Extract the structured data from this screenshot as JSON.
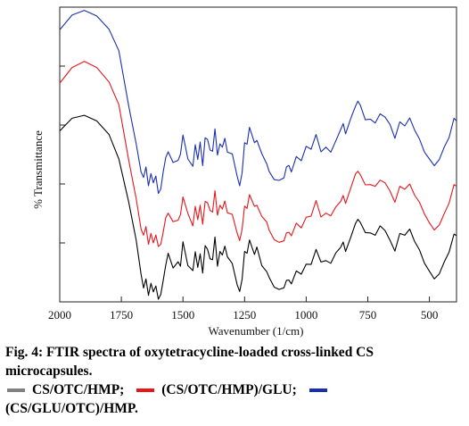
{
  "chart_data": {
    "type": "line",
    "xlabel": "Wavenumber (1/cm)",
    "ylabel": "% Transmittance",
    "xlim": [
      2000,
      390
    ],
    "ylim": [
      0,
      100
    ],
    "x_ticks": [
      2000,
      1750,
      1500,
      1250,
      1000,
      750,
      500
    ],
    "x_tick_labels": [
      "2000",
      "1750",
      "1500",
      "1250",
      "1000",
      "750",
      "500"
    ],
    "y_ticks": [
      20,
      40,
      60,
      80,
      100
    ],
    "series": [
      {
        "name": "CS/OTC/HMP",
        "color": "#000000",
        "x": [
          2000,
          1950,
          1900,
          1850,
          1800,
          1760,
          1720,
          1690,
          1670,
          1660,
          1650,
          1640,
          1630,
          1620,
          1610,
          1600,
          1590,
          1580,
          1570,
          1560,
          1540,
          1520,
          1510,
          1500,
          1490,
          1480,
          1460,
          1450,
          1440,
          1430,
          1420,
          1410,
          1400,
          1390,
          1380,
          1370,
          1360,
          1350,
          1340,
          1330,
          1320,
          1300,
          1280,
          1270,
          1260,
          1250,
          1240,
          1230,
          1210,
          1200,
          1180,
          1160,
          1150,
          1130,
          1110,
          1090,
          1080,
          1070,
          1060,
          1040,
          1020,
          1000,
          980,
          960,
          940,
          920,
          900,
          880,
          860,
          850,
          840,
          820,
          800,
          790,
          780,
          760,
          740,
          720,
          700,
          680,
          660,
          640,
          620,
          600,
          580,
          560,
          540,
          520,
          500,
          480,
          460,
          440,
          420,
          400,
          390
        ],
        "y": [
          58.0,
          62.3,
          63.3,
          61.4,
          56.8,
          48.5,
          33.8,
          21.0,
          9.4,
          4.7,
          7.8,
          2.2,
          6.3,
          3.4,
          5.4,
          0.9,
          2.5,
          7.4,
          12.5,
          16.5,
          11.5,
          13.6,
          12.1,
          20.4,
          16.3,
          12.3,
          10.6,
          17.0,
          11.7,
          16.3,
          9.8,
          19.1,
          17.8,
          14.6,
          14.3,
          22.0,
          12.1,
          17.1,
          15.9,
          18.9,
          15.3,
          13.0,
          5.8,
          3.5,
          7.6,
          17.1,
          16.5,
          21.0,
          16.1,
          18.6,
          12.3,
          10.2,
          8.3,
          5.0,
          4.2,
          4.8,
          7.3,
          7.4,
          6.1,
          10.5,
          9.4,
          12.8,
          12.7,
          17.8,
          13.5,
          14.0,
          13.1,
          16.6,
          18.5,
          20.3,
          17.1,
          21.7,
          26.6,
          28.0,
          26.9,
          23.5,
          23.4,
          22.6,
          25.8,
          24.2,
          20.9,
          17.2,
          23.2,
          22.6,
          24.7,
          20.5,
          17.6,
          13.1,
          10.4,
          7.8,
          9.5,
          13.5,
          16.9,
          23.0,
          22.5
        ]
      },
      {
        "name": "(CS/OTC/HMP)/GLU",
        "color": "#e8151b",
        "x": [
          2000,
          1950,
          1900,
          1850,
          1800,
          1760,
          1720,
          1690,
          1670,
          1660,
          1650,
          1640,
          1630,
          1620,
          1610,
          1600,
          1590,
          1580,
          1570,
          1560,
          1540,
          1520,
          1510,
          1500,
          1490,
          1480,
          1460,
          1450,
          1440,
          1430,
          1420,
          1410,
          1400,
          1390,
          1380,
          1370,
          1360,
          1350,
          1340,
          1330,
          1320,
          1300,
          1280,
          1270,
          1260,
          1250,
          1240,
          1230,
          1210,
          1200,
          1180,
          1160,
          1150,
          1130,
          1110,
          1090,
          1080,
          1070,
          1060,
          1040,
          1020,
          1000,
          980,
          960,
          940,
          920,
          900,
          880,
          860,
          850,
          840,
          820,
          800,
          790,
          780,
          760,
          740,
          720,
          700,
          680,
          660,
          640,
          620,
          600,
          580,
          560,
          540,
          520,
          500,
          480,
          460,
          440,
          420,
          400,
          390
        ],
        "y": [
          74.2,
          79.5,
          81.6,
          79.5,
          74.6,
          66.9,
          48.0,
          35.1,
          24.7,
          22.6,
          25.5,
          19.5,
          23.2,
          20.0,
          22.7,
          18.8,
          19.5,
          23.8,
          28.6,
          30.1,
          27.2,
          27.7,
          29.6,
          35.6,
          32.8,
          30.0,
          25.8,
          32.4,
          27.9,
          32.8,
          26.4,
          34.1,
          33.6,
          31.0,
          30.5,
          37.7,
          29.4,
          32.8,
          31.5,
          34.2,
          30.2,
          29.7,
          23.3,
          20.8,
          24.6,
          32.5,
          31.7,
          36.4,
          32.4,
          32.8,
          29.0,
          27.1,
          24.3,
          21.1,
          20.2,
          20.7,
          23.4,
          23.6,
          22.4,
          26.7,
          25.1,
          28.7,
          29.1,
          34.4,
          28.8,
          30.1,
          29.2,
          32.2,
          34.1,
          36.1,
          33.4,
          38.4,
          43.4,
          44.3,
          43.1,
          39.7,
          39.8,
          39.2,
          41.3,
          40.4,
          37.6,
          33.8,
          39.2,
          38.2,
          40.0,
          36.2,
          33.8,
          29.8,
          26.8,
          24.4,
          26.1,
          29.9,
          33.5,
          39.8,
          39.2
        ]
      },
      {
        "name": "(CS/GLU/OTC)/HMP",
        "color": "#1a2fb0",
        "x": [
          2000,
          1950,
          1900,
          1850,
          1800,
          1760,
          1720,
          1690,
          1670,
          1660,
          1650,
          1640,
          1630,
          1620,
          1610,
          1600,
          1590,
          1580,
          1570,
          1560,
          1540,
          1520,
          1510,
          1500,
          1490,
          1480,
          1460,
          1450,
          1440,
          1430,
          1420,
          1410,
          1400,
          1390,
          1380,
          1370,
          1360,
          1350,
          1340,
          1330,
          1320,
          1300,
          1280,
          1270,
          1260,
          1250,
          1240,
          1230,
          1210,
          1200,
          1180,
          1160,
          1150,
          1130,
          1110,
          1090,
          1080,
          1070,
          1060,
          1040,
          1020,
          1000,
          980,
          960,
          940,
          920,
          900,
          880,
          860,
          850,
          840,
          820,
          800,
          790,
          780,
          760,
          740,
          720,
          700,
          680,
          660,
          640,
          620,
          600,
          580,
          560,
          540,
          520,
          500,
          480,
          460,
          440,
          420,
          400,
          390
        ],
        "y": [
          92.3,
          97.3,
          98.9,
          97.0,
          92.5,
          85.2,
          66.4,
          53.7,
          44.1,
          42.2,
          45.8,
          39.4,
          43.5,
          40.4,
          42.7,
          36.8,
          38.3,
          44.2,
          49.0,
          50.9,
          47.3,
          48.0,
          50.1,
          56.6,
          52.6,
          48.5,
          46.0,
          53.3,
          48.3,
          54.2,
          46.2,
          55.7,
          55.1,
          51.5,
          51.1,
          58.7,
          49.8,
          53.6,
          52.5,
          55.5,
          50.8,
          50.2,
          42.6,
          39.4,
          43.7,
          54.0,
          53.5,
          59.2,
          54.0,
          54.8,
          50.3,
          46.8,
          44.2,
          41.5,
          41.2,
          42.1,
          45.8,
          46.3,
          44.1,
          49.3,
          47.9,
          52.8,
          51.8,
          56.8,
          50.9,
          52.5,
          50.8,
          54.6,
          58.5,
          60.5,
          57.0,
          62.0,
          66.4,
          68.1,
          66.7,
          61.8,
          62.0,
          60.7,
          63.8,
          62.7,
          60.2,
          55.5,
          61.1,
          59.7,
          62.4,
          58.3,
          55.2,
          50.8,
          48.5,
          46.2,
          48.3,
          52.5,
          55.8,
          62.3,
          61.4
        ]
      }
    ]
  },
  "caption": {
    "figure_text": "Fig. 4: FTIR spectra of oxytetracycline-loaded cross-linked CS microcapsules.",
    "legend": [
      {
        "label": "CS/OTC/HMP;",
        "color": "#808080"
      },
      {
        "label": "(CS/OTC/HMP)/GLU;",
        "color": "#e8151b"
      },
      {
        "label": "(CS/GLU/OTC)/HMP.",
        "color": "#1a2fb0"
      }
    ]
  }
}
